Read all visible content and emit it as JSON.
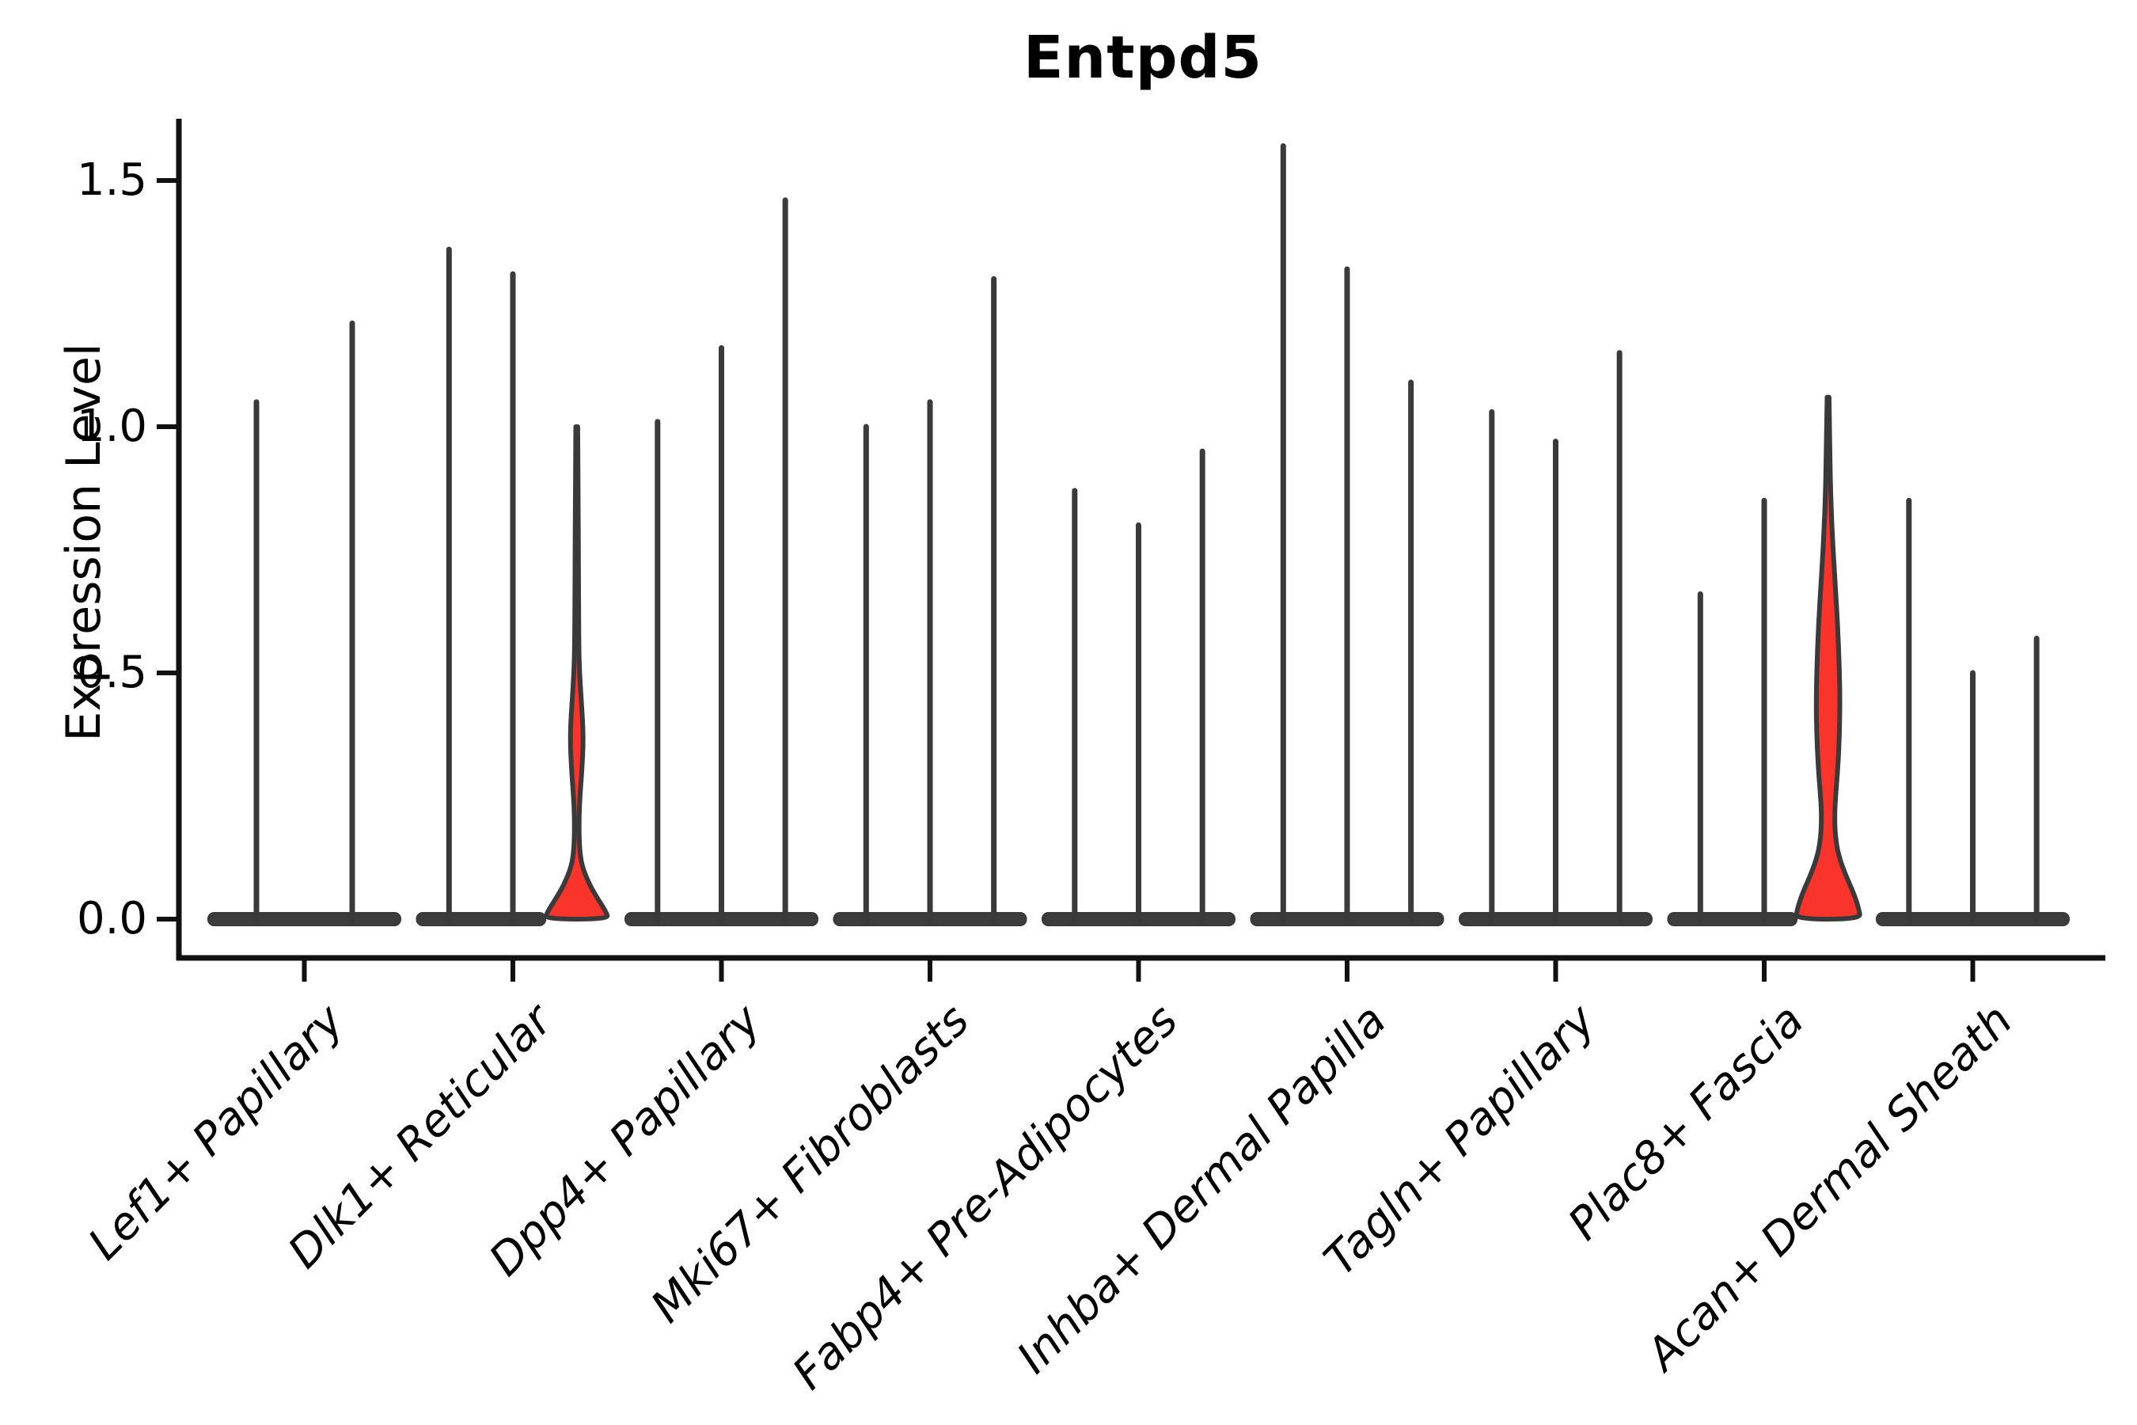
{
  "chart_data": {
    "type": "violin",
    "title": "Entpd5",
    "ylabel": "Expression Level",
    "xlabel": "",
    "ylim": [
      0,
      1.68
    ],
    "yticks": [
      0.0,
      0.5,
      1.0,
      1.5
    ],
    "ytick_labels": [
      "0.0",
      "0.5",
      "1.0",
      "1.5"
    ],
    "grid": false,
    "legend": "none",
    "xticklabel_rotation": 45,
    "xticklabel_style": "italic",
    "note": "Stacked-violin style gene expression plot. Each category holds 2-3 extremely narrow violins whose mass sits at expression 0 (flat dark bars) with a thin spike up to the max expressed value. Two violins are filled red (visible non-zero expression density).",
    "categories": [
      "Lef1+ Papillary",
      "Dlk1+ Reticular",
      "Dpp4+ Papillary",
      "Mki67+ Fibroblasts",
      "Fabp4+ Pre-Adipocytes",
      "Inhba+ Dermal Papilla",
      "Tagln+ Papillary",
      "Plac8+ Fascia",
      "Acan+ Dermal Sheath"
    ],
    "groups": [
      {
        "label": "Lef1+ Papillary",
        "violins": [
          {
            "max": 1.05
          },
          {
            "max": 1.21
          }
        ]
      },
      {
        "label": "Dlk1+ Reticular",
        "violins": [
          {
            "max": 1.36
          },
          {
            "max": 1.31
          },
          {
            "max": 1.0,
            "highlighted": true,
            "profile": [
              [
                1.0,
                1.2
              ],
              [
                0.85,
                1.8
              ],
              [
                0.7,
                2.2
              ],
              [
                0.56,
                2.6
              ],
              [
                0.5,
                3.5
              ],
              [
                0.44,
                6.0
              ],
              [
                0.37,
                8.5
              ],
              [
                0.3,
                6.5
              ],
              [
                0.25,
                4.0
              ],
              [
                0.2,
                2.8
              ],
              [
                0.15,
                3.2
              ],
              [
                0.11,
                6.0
              ],
              [
                0.07,
                16.0
              ],
              [
                0.04,
                27.0
              ],
              [
                0.015,
                37.0
              ],
              [
                0.0,
                40.0
              ]
            ]
          }
        ]
      },
      {
        "label": "Dpp4+ Papillary",
        "violins": [
          {
            "max": 1.01
          },
          {
            "max": 1.16
          },
          {
            "max": 1.46
          }
        ]
      },
      {
        "label": "Mki67+ Fibroblasts",
        "violins": [
          {
            "max": 1.0
          },
          {
            "max": 1.05
          },
          {
            "max": 1.3
          }
        ]
      },
      {
        "label": "Fabp4+ Pre-Adipocytes",
        "violins": [
          {
            "max": 0.87
          },
          {
            "max": 0.8
          },
          {
            "max": 0.95
          }
        ]
      },
      {
        "label": "Inhba+ Dermal Papilla",
        "violins": [
          {
            "max": 1.57
          },
          {
            "max": 1.32
          },
          {
            "max": 1.09
          }
        ]
      },
      {
        "label": "Tagln+ Papillary",
        "violins": [
          {
            "max": 1.03
          },
          {
            "max": 0.97
          },
          {
            "max": 1.15
          }
        ]
      },
      {
        "label": "Plac8+ Fascia",
        "violins": [
          {
            "max": 0.66
          },
          {
            "max": 0.85
          },
          {
            "max": 1.06,
            "highlighted": true,
            "profile": [
              [
                1.06,
                1.2
              ],
              [
                0.95,
                2.2
              ],
              [
                0.85,
                3.5
              ],
              [
                0.76,
                6.0
              ],
              [
                0.68,
                9.0
              ],
              [
                0.6,
                12.0
              ],
              [
                0.52,
                14.0
              ],
              [
                0.45,
                15.0
              ],
              [
                0.38,
                14.5
              ],
              [
                0.31,
                12.5
              ],
              [
                0.26,
                10.0
              ],
              [
                0.215,
                8.2
              ],
              [
                0.17,
                9.0
              ],
              [
                0.13,
                13.0
              ],
              [
                0.09,
                22.0
              ],
              [
                0.05,
                33.0
              ],
              [
                0.02,
                39.0
              ],
              [
                0.0,
                41.0
              ]
            ]
          }
        ]
      },
      {
        "label": "Acan+ Dermal Sheath",
        "violins": [
          {
            "max": 0.85
          },
          {
            "max": 0.5
          },
          {
            "max": 0.57
          }
        ]
      }
    ],
    "colors": {
      "highlight_fill": "#f9342b",
      "violin_stroke": "#3a3a3a",
      "zero_bar_fill": "#3c3c3c",
      "axis": "#111111",
      "text": "#000000",
      "background": "#ffffff"
    }
  }
}
